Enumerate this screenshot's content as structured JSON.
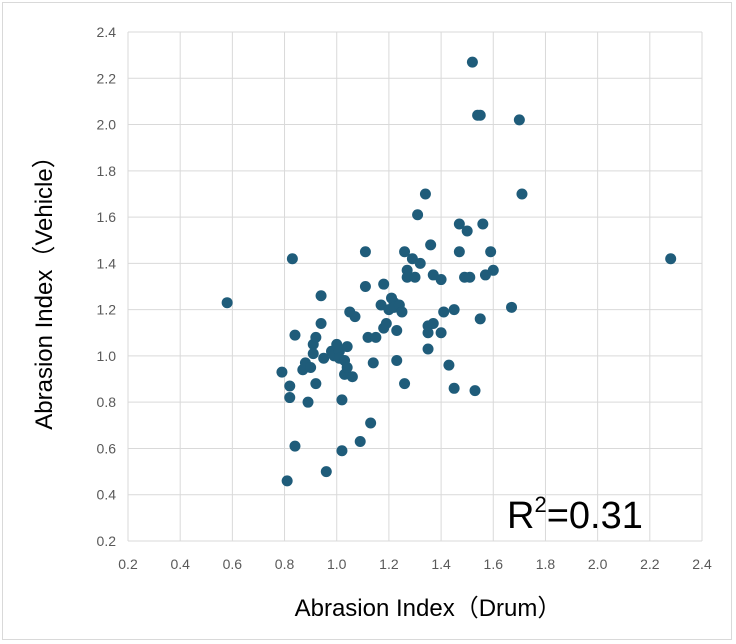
{
  "chart_data": {
    "type": "scatter",
    "xlabel": "Abrasion Index（Drum）",
    "ylabel": "Abrasion Index（Vehicle）",
    "xlim": [
      0.2,
      2.4
    ],
    "ylim": [
      0.2,
      2.4
    ],
    "x_ticks": [
      "0.2",
      "0.4",
      "0.6",
      "0.8",
      "1.0",
      "1.2",
      "1.4",
      "1.6",
      "1.8",
      "2.0",
      "2.2",
      "2.4"
    ],
    "y_ticks": [
      "0.2",
      "0.4",
      "0.6",
      "0.8",
      "1.0",
      "1.2",
      "1.4",
      "1.6",
      "1.8",
      "2.0",
      "2.2",
      "2.4"
    ],
    "grid": true,
    "marker_color": "#1f5c7a",
    "annotation": {
      "base": "R",
      "sup": "2",
      "rest": "=0.31"
    },
    "points": [
      [
        0.58,
        1.23
      ],
      [
        0.79,
        0.93
      ],
      [
        0.81,
        0.46
      ],
      [
        0.82,
        0.82
      ],
      [
        0.82,
        0.87
      ],
      [
        0.83,
        1.42
      ],
      [
        0.84,
        1.09
      ],
      [
        0.84,
        0.61
      ],
      [
        0.87,
        0.94
      ],
      [
        0.88,
        0.97
      ],
      [
        0.89,
        0.8
      ],
      [
        0.9,
        0.95
      ],
      [
        0.91,
        1.05
      ],
      [
        0.91,
        1.01
      ],
      [
        0.92,
        0.88
      ],
      [
        0.92,
        1.08
      ],
      [
        0.94,
        1.26
      ],
      [
        0.94,
        1.14
      ],
      [
        0.95,
        0.99
      ],
      [
        0.96,
        0.5
      ],
      [
        0.98,
        1.02
      ],
      [
        0.99,
        1.0
      ],
      [
        1.0,
        1.05
      ],
      [
        1.01,
        1.02
      ],
      [
        1.01,
        0.99
      ],
      [
        1.02,
        0.81
      ],
      [
        1.02,
        0.59
      ],
      [
        1.03,
        0.92
      ],
      [
        1.03,
        0.98
      ],
      [
        1.04,
        1.04
      ],
      [
        1.04,
        0.95
      ],
      [
        1.05,
        1.19
      ],
      [
        1.06,
        0.91
      ],
      [
        1.07,
        1.17
      ],
      [
        1.09,
        0.63
      ],
      [
        1.11,
        1.45
      ],
      [
        1.11,
        1.3
      ],
      [
        1.12,
        1.08
      ],
      [
        1.13,
        0.71
      ],
      [
        1.14,
        0.97
      ],
      [
        1.15,
        1.08
      ],
      [
        1.17,
        1.22
      ],
      [
        1.18,
        1.31
      ],
      [
        1.18,
        1.12
      ],
      [
        1.19,
        1.14
      ],
      [
        1.2,
        1.2
      ],
      [
        1.21,
        1.25
      ],
      [
        1.22,
        1.23
      ],
      [
        1.22,
        1.21
      ],
      [
        1.23,
        1.11
      ],
      [
        1.23,
        0.98
      ],
      [
        1.24,
        1.22
      ],
      [
        1.25,
        1.19
      ],
      [
        1.26,
        0.88
      ],
      [
        1.26,
        1.45
      ],
      [
        1.27,
        1.37
      ],
      [
        1.27,
        1.34
      ],
      [
        1.29,
        1.42
      ],
      [
        1.3,
        1.34
      ],
      [
        1.31,
        1.61
      ],
      [
        1.32,
        1.4
      ],
      [
        1.34,
        1.7
      ],
      [
        1.35,
        1.13
      ],
      [
        1.35,
        1.1
      ],
      [
        1.35,
        1.03
      ],
      [
        1.36,
        1.48
      ],
      [
        1.37,
        1.35
      ],
      [
        1.37,
        1.14
      ],
      [
        1.4,
        1.1
      ],
      [
        1.4,
        1.33
      ],
      [
        1.41,
        1.19
      ],
      [
        1.43,
        0.96
      ],
      [
        1.45,
        0.86
      ],
      [
        1.45,
        1.2
      ],
      [
        1.47,
        1.57
      ],
      [
        1.47,
        1.45
      ],
      [
        1.49,
        1.34
      ],
      [
        1.5,
        1.54
      ],
      [
        1.51,
        1.34
      ],
      [
        1.52,
        2.27
      ],
      [
        1.53,
        0.85
      ],
      [
        1.54,
        2.04
      ],
      [
        1.55,
        2.04
      ],
      [
        1.55,
        1.16
      ],
      [
        1.56,
        1.57
      ],
      [
        1.57,
        1.35
      ],
      [
        1.59,
        1.45
      ],
      [
        1.6,
        1.37
      ],
      [
        1.67,
        1.21
      ],
      [
        1.7,
        2.02
      ],
      [
        1.71,
        1.7
      ],
      [
        2.28,
        1.42
      ]
    ]
  }
}
